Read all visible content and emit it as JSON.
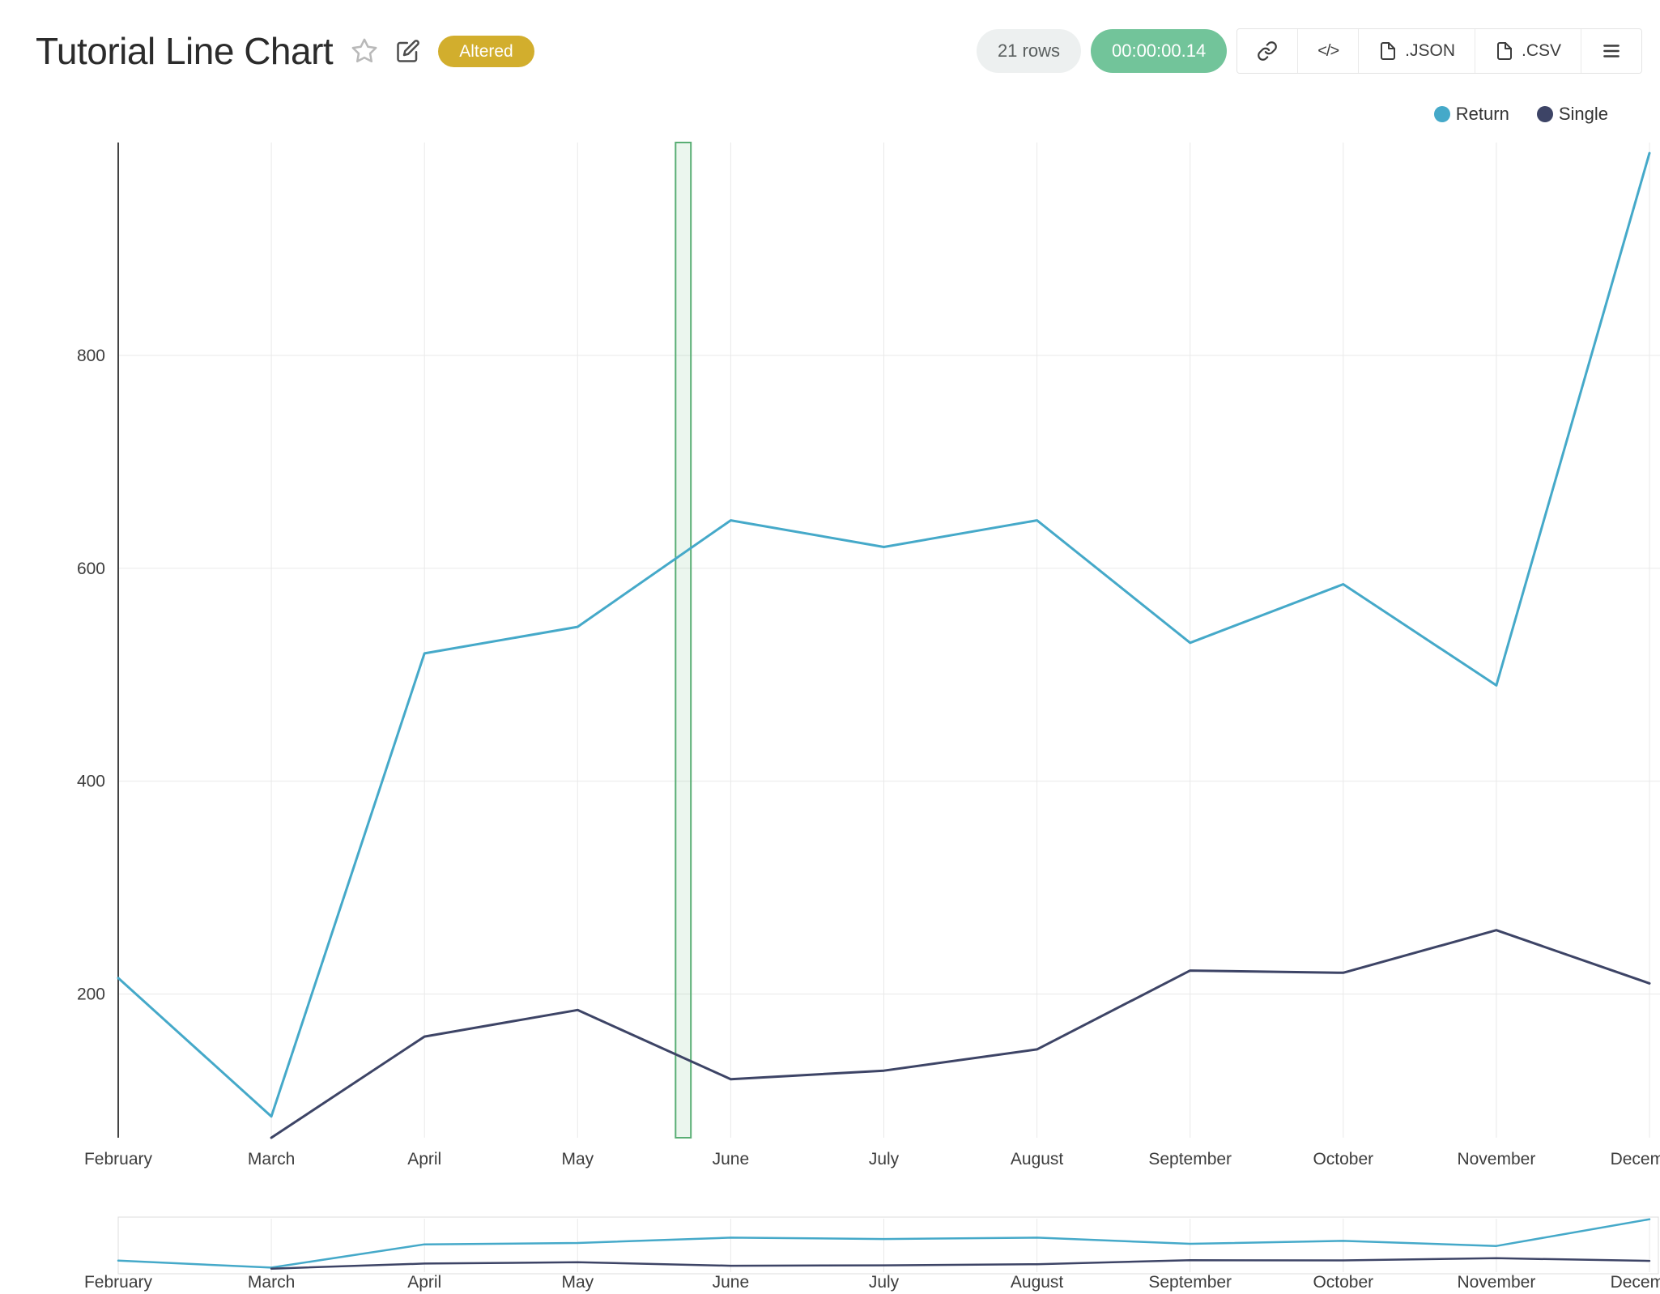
{
  "header": {
    "title": "Tutorial Line Chart",
    "badge": "Altered",
    "rows_label": "21 rows",
    "timer": "00:00:00.14",
    "code_icon_label": "</>",
    "export_json_label": ".JSON",
    "export_csv_label": ".CSV"
  },
  "chart_data": {
    "type": "line",
    "title": "Tutorial Line Chart",
    "x": [
      "February",
      "March",
      "April",
      "May",
      "June",
      "July",
      "August",
      "September",
      "October",
      "November",
      "December"
    ],
    "series": [
      {
        "name": "Return",
        "color": "#45a9c9",
        "values": [
          215,
          85,
          520,
          545,
          645,
          620,
          645,
          530,
          585,
          490,
          990
        ]
      },
      {
        "name": "Single",
        "color": "#3d4466",
        "values": [
          null,
          65,
          160,
          185,
          120,
          128,
          148,
          222,
          220,
          260,
          210
        ]
      }
    ],
    "xlabel": "",
    "ylabel": "",
    "ylim": [
      65,
      1000
    ],
    "yticks": [
      200,
      400,
      600,
      800
    ],
    "grid": true,
    "legend_position": "top-right",
    "selection_band": {
      "from_x_index": 3.64,
      "to_x_index": 3.74,
      "color": "#59ae74"
    },
    "rangeslider": {
      "shown": true,
      "ylim": [
        0,
        1000
      ]
    }
  }
}
